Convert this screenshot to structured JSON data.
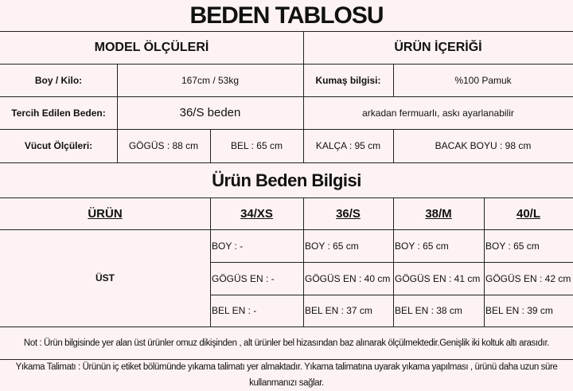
{
  "title": "BEDEN TABLOSU",
  "model": {
    "heading": "MODEL ÖLÇÜLERİ",
    "boy_kilo_label": "Boy / Kilo:",
    "boy_kilo_value": "167cm / 53kg",
    "tercih_label": "Tercih Edilen Beden:",
    "tercih_value": "36/S beden",
    "vucut_label": "Vücut Ölçüleri:",
    "gogus": "GÖGÜS : 88 cm",
    "bel": "BEL : 65 cm",
    "kalca": "KALÇA : 95 cm",
    "bacak": "BACAK BOYU : 98 cm"
  },
  "urun_icerigi": {
    "heading": "ÜRÜN İÇERİĞİ",
    "kumas_label": "Kumaş bilgisi:",
    "kumas_value": "%100 Pamuk",
    "detail": "arkadan fermuarlı, askı ayarlanabilir"
  },
  "size_table": {
    "title": "Ürün Beden Bilgisi",
    "headers": [
      "ÜRÜN",
      "34/XS",
      "36/S",
      "38/M",
      "40/L"
    ],
    "product": "ÜST",
    "rows": [
      [
        "BOY : -",
        "BOY : 65 cm",
        "BOY : 65 cm",
        "BOY : 65 cm"
      ],
      [
        "GÖGÜS EN : -",
        "GÖGÜS EN : 40 cm",
        "GÖGÜS EN : 41 cm",
        "GÖGÜS EN : 42 cm"
      ],
      [
        "BEL EN : -",
        "BEL EN : 37 cm",
        "BEL EN : 38 cm",
        "BEL EN : 39 cm"
      ]
    ]
  },
  "note": "Not : Ürün bilgisinde yer alan üst ürünler omuz dikişinden , alt ürünler bel hizasından baz alınarak ölçülmektedir.Genişlik iki koltuk altı arasıdır.",
  "washing": "Yıkama Talimatı : Ürünün iç etiket bölümünde yıkama talimatı yer almaktadır. Yıkama talimatına uyarak yıkama yapılması , ürünü daha uzun süre kullanmanızı sağlar."
}
